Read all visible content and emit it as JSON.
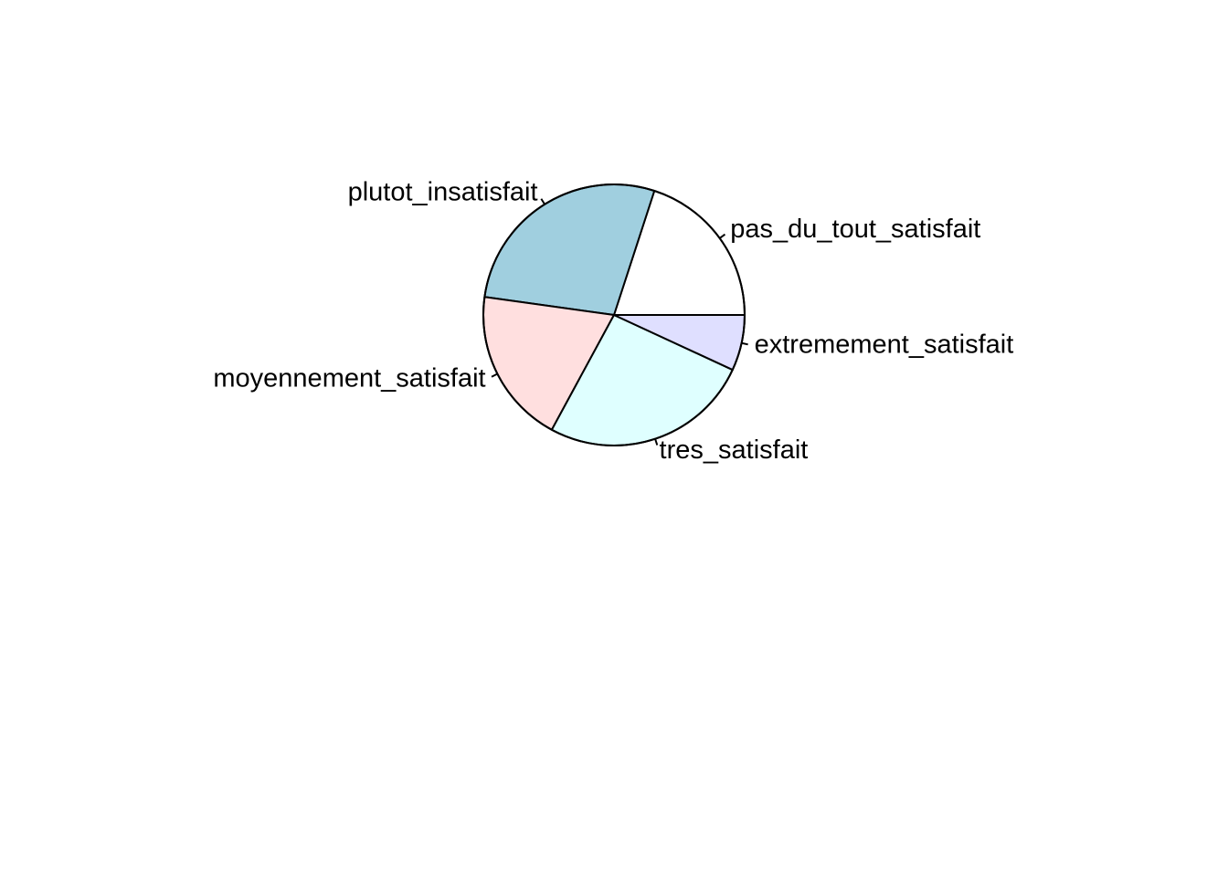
{
  "chart_data": {
    "type": "pie",
    "title": "",
    "categories": [
      "pas_du_tout_satisfait",
      "plutot_insatisfait",
      "moyennement_satisfait",
      "tres_satisfait",
      "extremement_satisfait"
    ],
    "values": [
      20.0,
      27.8,
      19.3,
      26.0,
      6.9
    ],
    "colors": [
      "#FFFFFF",
      "#A0CFDF",
      "#FFDFDF",
      "#DFFFFF",
      "#DFDFFF"
    ],
    "start_angle_deg": 0,
    "direction": "counterclockwise",
    "border_color": "#000000"
  }
}
